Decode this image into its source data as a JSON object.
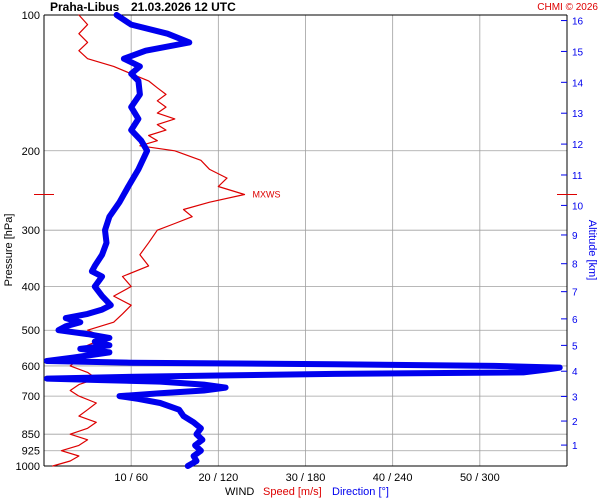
{
  "header": {
    "station": "Praha-Libus",
    "datetime": "21.03.2026 12 UTC",
    "credit": "CHMI © 2026"
  },
  "colors": {
    "speed": "#dd0000",
    "direction": "#0000ee",
    "grid": "#a0a0a0",
    "text": "#000000"
  },
  "chart_data": {
    "type": "line",
    "left_axis": {
      "label": "Pressure [hPa]",
      "scale": "log",
      "ticks": [
        100,
        200,
        300,
        400,
        500,
        600,
        700,
        850,
        925,
        1000
      ],
      "range": [
        100,
        1000
      ]
    },
    "right_axis": {
      "label": "Altitude [km]",
      "ticks": [
        1,
        2,
        3,
        4,
        5,
        6,
        7,
        8,
        9,
        10,
        11,
        12,
        13,
        14,
        15,
        16
      ]
    },
    "bottom_axis": {
      "title": "WIND",
      "speed_label": "Speed [m/s]",
      "direction_label": "Direction [°]",
      "speed_range": [
        0,
        60
      ],
      "direction_range": [
        0,
        360
      ],
      "tick_labels": [
        "10 / 60",
        "20 / 120",
        "30 / 180",
        "40 / 240",
        "50 / 300"
      ]
    },
    "max_wind": {
      "label": "MXWS",
      "pressure": 250,
      "speed": 23
    },
    "series": [
      {
        "name": "Speed [m/s]",
        "unit": "m/s",
        "points": [
          [
            1000,
            1
          ],
          [
            975,
            3
          ],
          [
            950,
            4
          ],
          [
            925,
            2
          ],
          [
            900,
            4
          ],
          [
            875,
            5
          ],
          [
            850,
            3
          ],
          [
            825,
            5
          ],
          [
            800,
            6
          ],
          [
            775,
            4
          ],
          [
            750,
            5
          ],
          [
            725,
            6
          ],
          [
            700,
            4
          ],
          [
            680,
            3
          ],
          [
            660,
            4
          ],
          [
            640,
            6
          ],
          [
            620,
            5
          ],
          [
            600,
            3
          ],
          [
            580,
            4
          ],
          [
            560,
            6
          ],
          [
            540,
            5
          ],
          [
            520,
            7
          ],
          [
            500,
            5
          ],
          [
            480,
            8
          ],
          [
            460,
            9
          ],
          [
            440,
            10
          ],
          [
            420,
            8
          ],
          [
            400,
            10
          ],
          [
            380,
            9
          ],
          [
            360,
            12
          ],
          [
            340,
            11
          ],
          [
            320,
            12
          ],
          [
            300,
            13
          ],
          [
            290,
            15
          ],
          [
            280,
            17
          ],
          [
            270,
            16
          ],
          [
            260,
            19
          ],
          [
            250,
            23
          ],
          [
            240,
            20
          ],
          [
            230,
            21
          ],
          [
            220,
            19
          ],
          [
            210,
            18
          ],
          [
            200,
            15
          ],
          [
            195,
            11
          ],
          [
            190,
            13
          ],
          [
            185,
            12
          ],
          [
            180,
            14
          ],
          [
            175,
            13
          ],
          [
            170,
            15
          ],
          [
            165,
            13
          ],
          [
            160,
            14
          ],
          [
            155,
            13
          ],
          [
            150,
            14
          ],
          [
            145,
            13
          ],
          [
            140,
            12
          ],
          [
            135,
            10
          ],
          [
            130,
            8
          ],
          [
            125,
            5
          ],
          [
            120,
            4
          ],
          [
            115,
            5
          ],
          [
            110,
            4
          ],
          [
            105,
            5
          ],
          [
            100,
            4
          ]
        ]
      },
      {
        "name": "Direction [°]",
        "unit": "deg",
        "points": [
          [
            1000,
            99
          ],
          [
            975,
            105
          ],
          [
            950,
            103
          ],
          [
            925,
            108
          ],
          [
            900,
            104
          ],
          [
            875,
            109
          ],
          [
            850,
            105
          ],
          [
            825,
            108
          ],
          [
            800,
            103
          ],
          [
            775,
            96
          ],
          [
            750,
            93
          ],
          [
            725,
            80
          ],
          [
            710,
            65
          ],
          [
            700,
            52
          ],
          [
            690,
            80
          ],
          [
            680,
            110
          ],
          [
            670,
            125
          ],
          [
            660,
            110
          ],
          [
            650,
            80
          ],
          [
            645,
            40
          ],
          [
            640,
            2
          ],
          [
            635,
            50
          ],
          [
            630,
            120
          ],
          [
            625,
            200
          ],
          [
            620,
            330
          ],
          [
            612,
            345
          ],
          [
            605,
            355
          ],
          [
            600,
            310
          ],
          [
            595,
            200
          ],
          [
            590,
            60
          ],
          [
            585,
            2
          ],
          [
            575,
            20
          ],
          [
            560,
            45
          ],
          [
            550,
            25
          ],
          [
            540,
            45
          ],
          [
            530,
            35
          ],
          [
            520,
            45
          ],
          [
            510,
            30
          ],
          [
            500,
            10
          ],
          [
            490,
            15
          ],
          [
            480,
            25
          ],
          [
            470,
            15
          ],
          [
            460,
            30
          ],
          [
            450,
            40
          ],
          [
            440,
            46
          ],
          [
            430,
            43
          ],
          [
            420,
            40
          ],
          [
            400,
            35
          ],
          [
            380,
            40
          ],
          [
            370,
            33
          ],
          [
            360,
            35
          ],
          [
            340,
            40
          ],
          [
            320,
            43
          ],
          [
            300,
            42
          ],
          [
            280,
            45
          ],
          [
            260,
            52
          ],
          [
            240,
            58
          ],
          [
            220,
            65
          ],
          [
            200,
            71
          ],
          [
            190,
            67
          ],
          [
            180,
            60
          ],
          [
            170,
            65
          ],
          [
            160,
            60
          ],
          [
            150,
            66
          ],
          [
            140,
            65
          ],
          [
            135,
            60
          ],
          [
            130,
            66
          ],
          [
            125,
            55
          ],
          [
            120,
            70
          ],
          [
            115,
            100
          ],
          [
            110,
            85
          ],
          [
            105,
            60
          ],
          [
            100,
            50
          ]
        ]
      }
    ]
  }
}
